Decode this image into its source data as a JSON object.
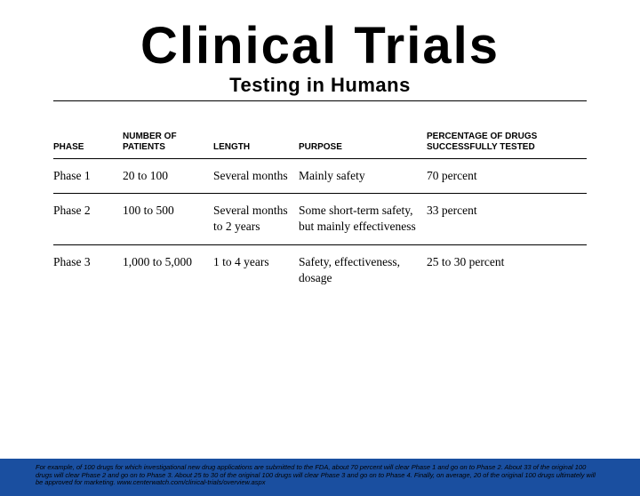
{
  "header": {
    "title": "Clinical Trials",
    "subtitle": "Testing in Humans"
  },
  "table": {
    "columns": [
      "PHASE",
      "NUMBER OF PATIENTS",
      "LENGTH",
      "PURPOSE",
      "PERCENTAGE OF DRUGS SUCCESSFULLY TESTED"
    ],
    "rows": [
      {
        "phase": "Phase 1",
        "patients": "20 to 100",
        "length": "Several months",
        "purpose": "Mainly safety",
        "percent": "70 percent"
      },
      {
        "phase": "Phase 2",
        "patients": "100 to 500",
        "length": "Several months to 2 years",
        "purpose": "Some short-term safety, but mainly effectiveness",
        "percent": "33 percent"
      },
      {
        "phase": "Phase 3",
        "patients": "1,000 to 5,000",
        "length": "1 to 4 years",
        "purpose": "Safety, effectiveness, dosage",
        "percent": "25 to 30 percent"
      }
    ]
  },
  "footer": {
    "text": "For example, of 100 drugs for which investigational new drug applications are submitted to the FDA, about 70 percent will clear Phase 1 and go on to Phase 2. About 33 of the original 100 drugs will clear Phase 2 and go on to Phase 3. About 25 to 30 of the original 100 drugs will clear Phase 3 and go on to Phase 4. Finally, on average, 20 of the original 100 drugs ultimately will be approved for marketing. www.centerwatch.com/clinical-trials/overview.aspx"
  },
  "colors": {
    "footer_bg": "#1a4fa0",
    "text": "#000000",
    "background": "#ffffff"
  }
}
